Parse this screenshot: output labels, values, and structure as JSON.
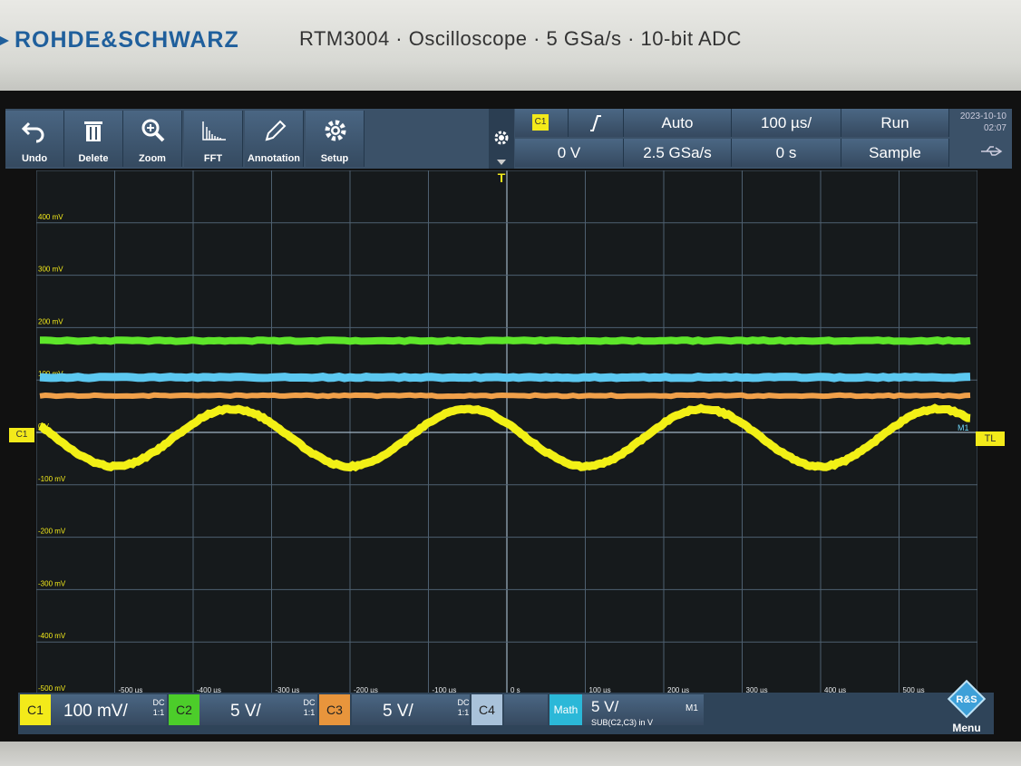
{
  "header": {
    "brand": "ROHDE&SCHWARZ",
    "model": "RTM3004 · Oscilloscope · 5 GSa/s · 10-bit ADC"
  },
  "toolbar": {
    "items": [
      {
        "label": "Undo",
        "icon": "undo-icon"
      },
      {
        "label": "Delete",
        "icon": "trash-icon"
      },
      {
        "label": "Zoom",
        "icon": "zoom-icon"
      },
      {
        "label": "FFT",
        "icon": "fft-icon"
      },
      {
        "label": "Annotation",
        "icon": "pencil-icon"
      },
      {
        "label": "Setup",
        "icon": "gear-icon"
      }
    ]
  },
  "trigger": {
    "source": "C1",
    "slope_icon": "rising-edge-icon",
    "mode": "Auto",
    "level": "0 V",
    "sample_rate": "2.5 GSa/s"
  },
  "timebase": {
    "scale": "100 µs/",
    "position": "0 s"
  },
  "acquisition": {
    "state": "Run",
    "mode": "Sample"
  },
  "datetime": {
    "date": "2023-10-10",
    "time": "02:07"
  },
  "grid": {
    "y_labels": [
      "400 mV",
      "300 mV",
      "200 mV",
      "100 mV",
      "0 V",
      "-100 mV",
      "-200 mV",
      "-300 mV",
      "-400 mV",
      "-500 mV"
    ],
    "x_labels": [
      "-500 µs",
      "-400 µs",
      "-300 µs",
      "-200 µs",
      "-100 µs",
      "0 s",
      "100 µs",
      "200 µs",
      "300 µs",
      "400 µs",
      "500 µs"
    ],
    "ch1_marker": "C1",
    "math_marker": "M1",
    "trigger_level_marker": "TL",
    "trigger_pos_marker": "T"
  },
  "traces": {
    "ch1_color": "#f2f016",
    "ch2_color": "#5ee62a",
    "ch3_color": "#f0a04a",
    "math_color": "#5cc8f0",
    "ch2_level_mV": 175,
    "math_level_mV": 105,
    "ch3_level_mV": 70,
    "ch1_amplitude_mV": 55,
    "ch1_center_mV": -10,
    "ch1_period_us": 300,
    "ch1_peak_at_us": -350
  },
  "status": {
    "channels": [
      {
        "tag": "C1",
        "value": "100 mV/",
        "coupling": "DC",
        "ratio": "1:1",
        "color": "#f3ea1a"
      },
      {
        "tag": "C2",
        "value": "5 V/",
        "coupling": "DC",
        "ratio": "1:1",
        "color": "#4ccd2a"
      },
      {
        "tag": "C3",
        "value": "5 V/",
        "coupling": "DC",
        "ratio": "1:1",
        "color": "#e8953c"
      },
      {
        "tag": "C4",
        "value": "",
        "coupling": "",
        "ratio": "",
        "color": "#a9c2da"
      }
    ],
    "math": {
      "tag": "Math",
      "value": "5 V/",
      "expr": "SUB(C2,C3) in V",
      "id": "M1",
      "color": "#2bb8d8"
    },
    "menu_label": "Menu"
  }
}
